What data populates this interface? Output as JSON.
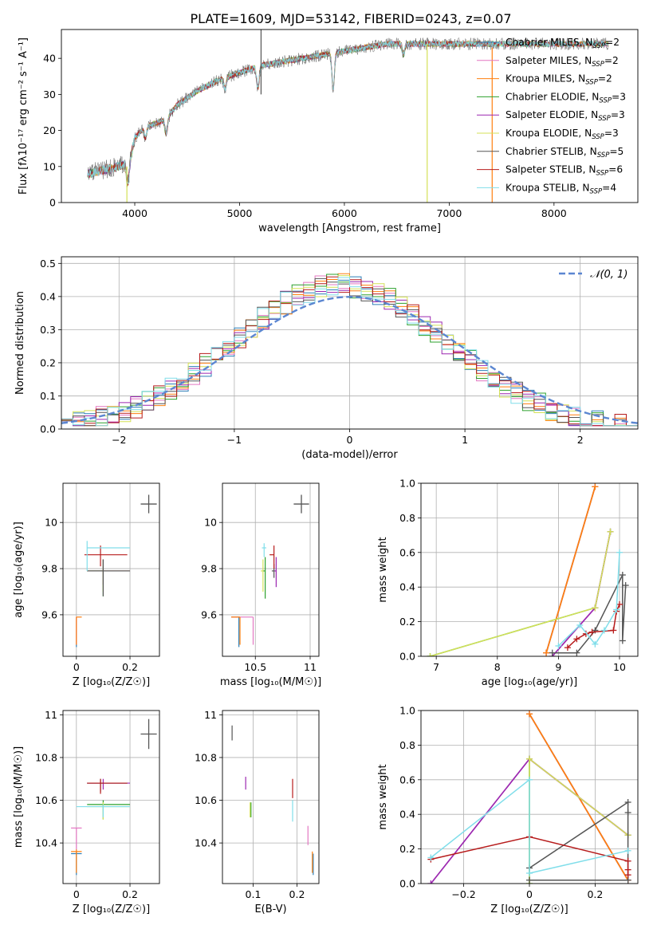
{
  "figure": {
    "title": "PLATE=1609, MJD=53142, FIBERID=0243, z=0.07",
    "colors": {
      "Chabrier MILES": "#2c7fb8",
      "Salpeter MILES": "#e377c2",
      "Kroupa MILES": "#ff7f0e",
      "Chabrier ELODIE": "#2ca02c",
      "Salpeter ELODIE": "#9c27b0",
      "Kroupa ELODIE": "#d4e157",
      "Chabrier STELIB": "#555555",
      "Salpeter STELIB": "#b71c1c",
      "Kroupa STELIB": "#80deea"
    }
  },
  "chart_data": [
    {
      "id": "spectrum",
      "type": "line",
      "xlabel": "wavelength [Angstrom, rest frame]",
      "ylabel": "Flux [fλ10⁻¹⁷ erg cm⁻² s⁻¹ A⁻¹]",
      "xlim": [
        3300,
        8800
      ],
      "ylim": [
        0,
        48
      ],
      "xticks": [
        4000,
        5000,
        6000,
        7000,
        8000
      ],
      "yticks": [
        0,
        10,
        20,
        30,
        40
      ],
      "grid": false,
      "legend_position": "right",
      "legend": [
        {
          "label": "Chabrier MILES, N",
          "sub": "SSP",
          "tail": "=2",
          "series": "Chabrier MILES"
        },
        {
          "label": "Salpeter MILES, N",
          "sub": "SSP",
          "tail": "=2",
          "series": "Salpeter MILES"
        },
        {
          "label": "Kroupa MILES, N",
          "sub": "SSP",
          "tail": "=2",
          "series": "Kroupa MILES"
        },
        {
          "label": "Chabrier ELODIE, N",
          "sub": "SSP",
          "tail": "=3",
          "series": "Chabrier ELODIE"
        },
        {
          "label": "Salpeter ELODIE, N",
          "sub": "SSP",
          "tail": "=3",
          "series": "Salpeter ELODIE"
        },
        {
          "label": "Kroupa ELODIE, N",
          "sub": "SSP",
          "tail": "=3",
          "series": "Kroupa ELODIE"
        },
        {
          "label": "Chabrier STELIB, N",
          "sub": "SSP",
          "tail": "=5",
          "series": "Chabrier STELIB"
        },
        {
          "label": "Salpeter STELIB, N",
          "sub": "SSP",
          "tail": "=6",
          "series": "Salpeter STELIB"
        },
        {
          "label": "Kroupa STELIB, N",
          "sub": "SSP",
          "tail": "=4",
          "series": "Kroupa STELIB"
        }
      ],
      "continuum": {
        "x": [
          3550,
          3700,
          3850,
          3950,
          4000,
          4100,
          4300,
          4400,
          4600,
          4800,
          5000,
          5200,
          5400,
          5600,
          5800,
          6000,
          6200,
          6400,
          6600,
          6800,
          7000,
          7200,
          7400,
          7600,
          7800,
          8000,
          8200,
          8400,
          8500
        ],
        "y": [
          8,
          9,
          10,
          11,
          18,
          21,
          23,
          27,
          31,
          34,
          36,
          38,
          39,
          40,
          41,
          42,
          43,
          44,
          44,
          44,
          44,
          44,
          44,
          44,
          44,
          44,
          44,
          44,
          44
        ]
      },
      "dips": [
        {
          "x": 3933,
          "depth": 5
        },
        {
          "x": 4102,
          "depth": 3
        },
        {
          "x": 4300,
          "depth": 4
        },
        {
          "x": 4861,
          "depth": 3
        },
        {
          "x": 5175,
          "depth": 6
        },
        {
          "x": 5893,
          "depth": 10
        },
        {
          "x": 6563,
          "depth": 3
        }
      ],
      "artifacts": [
        {
          "x": 5205,
          "y0": 30,
          "y1": 49,
          "series": "Chabrier STELIB"
        },
        {
          "x": 6790,
          "y0": 0,
          "y1": 44,
          "series": "Kroupa ELODIE"
        },
        {
          "x": 7410,
          "y0": 0,
          "y1": 43,
          "series": "Kroupa MILES"
        },
        {
          "x": 3925,
          "y0": 0,
          "y1": 10,
          "series": "Kroupa ELODIE"
        }
      ]
    },
    {
      "id": "residual-hist",
      "type": "bar",
      "xlabel": "(data-model)/error",
      "ylabel": "Normed distribution",
      "xlim": [
        -2.5,
        2.5
      ],
      "ylim": [
        0,
        0.52
      ],
      "xticks": [
        -2,
        -1,
        0,
        1,
        2
      ],
      "yticks": [
        0.0,
        0.1,
        0.2,
        0.3,
        0.4,
        0.5
      ],
      "grid": true,
      "legend_position": "top-right",
      "normal_curve": {
        "label": "𝒩(0, 1)",
        "mean": 0,
        "sigma": 1,
        "color": "#5b86d1"
      },
      "bin_width": 0.1,
      "bin_start": -2.5
    },
    {
      "id": "age-vs-Z",
      "type": "scatter",
      "xlabel": "Z [log₁₀(Z/Z☉)]",
      "ylabel": "age [log₁₀(age/yr)]",
      "xlim": [
        -0.05,
        0.31
      ],
      "ylim": [
        9.42,
        10.17
      ],
      "xticks": [
        0.0,
        0.2
      ],
      "yticks": [
        9.6,
        9.8,
        10.0
      ],
      "grid": true,
      "typical_error": {
        "x": 0.27,
        "y": 10.08,
        "dx": 0.03,
        "dy": 0.04
      },
      "points": [
        {
          "series": "Chabrier MILES",
          "x": 0.0,
          "y": 9.59,
          "xerr": [
            0.0,
            0.0
          ],
          "yerr": [
            0.13,
            0.0
          ]
        },
        {
          "series": "Salpeter MILES",
          "x": 0.0,
          "y": 9.59,
          "xerr": [
            0.0,
            0.0
          ],
          "yerr": [
            0.12,
            0.0
          ]
        },
        {
          "series": "Kroupa MILES",
          "x": 0.0,
          "y": 9.59,
          "xerr": [
            0.0,
            0.02
          ],
          "yerr": [
            0.12,
            0.0
          ]
        },
        {
          "series": "Chabrier ELODIE",
          "x": 0.1,
          "y": 9.79,
          "xerr": [
            0.06,
            0.0
          ],
          "yerr": [
            0.11,
            0.05
          ]
        },
        {
          "series": "Salpeter ELODIE",
          "x": 0.1,
          "y": 9.79,
          "xerr": [
            0.06,
            0.1
          ],
          "yerr": [
            0.06,
            0.05
          ]
        },
        {
          "series": "Kroupa ELODIE",
          "x": 0.1,
          "y": 9.79,
          "xerr": [
            0.06,
            0.1
          ],
          "yerr": [
            0.09,
            0.05
          ]
        },
        {
          "series": "Chabrier STELIB",
          "x": 0.1,
          "y": 9.79,
          "xerr": [
            0.06,
            0.1
          ],
          "yerr": [
            0.11,
            0.05
          ]
        },
        {
          "series": "Salpeter STELIB",
          "x": 0.09,
          "y": 9.86,
          "xerr": [
            0.06,
            0.1
          ],
          "yerr": [
            0.05,
            0.04
          ]
        },
        {
          "series": "Kroupa STELIB",
          "x": 0.04,
          "y": 9.89,
          "xerr": [
            0.0,
            0.16
          ],
          "yerr": [
            0.1,
            0.03
          ]
        }
      ]
    },
    {
      "id": "age-vs-mass",
      "type": "scatter",
      "xlabel": "mass [log₁₀(M/M☉)]",
      "ylabel": "",
      "xlim": [
        10.2,
        11.08
      ],
      "ylim": [
        9.42,
        10.17
      ],
      "xticks": [
        10.5,
        11.0
      ],
      "yticks": [
        9.6,
        9.8,
        10.0
      ],
      "grid": true,
      "typical_error": {
        "x": 10.92,
        "y": 10.08,
        "dx": 0.07,
        "dy": 0.04
      },
      "points": [
        {
          "series": "Chabrier MILES",
          "x": 10.35,
          "y": 9.59,
          "xerr": [
            0.07,
            0.0
          ],
          "yerr": [
            0.13,
            0.0
          ]
        },
        {
          "series": "Salpeter MILES",
          "x": 10.48,
          "y": 9.59,
          "xerr": [
            0.2,
            0.0
          ],
          "yerr": [
            0.12,
            0.0
          ]
        },
        {
          "series": "Kroupa MILES",
          "x": 10.36,
          "y": 9.59,
          "xerr": [
            0.08,
            0.0
          ],
          "yerr": [
            0.12,
            0.0
          ]
        },
        {
          "series": "Chabrier ELODIE",
          "x": 10.59,
          "y": 9.79,
          "xerr": [
            0.02,
            0.0
          ],
          "yerr": [
            0.12,
            0.06
          ]
        },
        {
          "series": "Salpeter ELODIE",
          "x": 10.69,
          "y": 9.79,
          "xerr": [
            0.02,
            0.0
          ],
          "yerr": [
            0.07,
            0.06
          ]
        },
        {
          "series": "Kroupa ELODIE",
          "x": 10.57,
          "y": 9.79,
          "xerr": [
            0.02,
            0.0
          ],
          "yerr": [
            0.09,
            0.05
          ]
        },
        {
          "series": "Chabrier STELIB",
          "x": 10.67,
          "y": 9.79,
          "xerr": [
            0.02,
            0.0
          ],
          "yerr": [
            0.03,
            0.03
          ]
        },
        {
          "series": "Salpeter STELIB",
          "x": 10.67,
          "y": 9.86,
          "xerr": [
            0.04,
            0.0
          ],
          "yerr": [
            0.06,
            0.04
          ]
        },
        {
          "series": "Kroupa STELIB",
          "x": 10.58,
          "y": 9.89,
          "xerr": [
            0.02,
            0.02
          ],
          "yerr": [
            0.04,
            0.02
          ]
        }
      ]
    },
    {
      "id": "weight-vs-age",
      "type": "line",
      "xlabel": "age  [log₁₀(age/yr)]",
      "ylabel": "mass weight",
      "xlim": [
        6.75,
        10.3
      ],
      "ylim": [
        0.0,
        1.0
      ],
      "xticks": [
        7,
        8,
        9,
        10
      ],
      "yticks": [
        0.0,
        0.2,
        0.4,
        0.6,
        0.8,
        1.0
      ],
      "grid": true,
      "series": [
        {
          "name": "Chabrier MILES",
          "x": [
            8.8,
            9.6
          ],
          "y": [
            0.02,
            0.98
          ]
        },
        {
          "name": "Salpeter MILES",
          "x": [
            8.8,
            9.6
          ],
          "y": [
            0.02,
            0.98
          ]
        },
        {
          "name": "Kroupa MILES",
          "x": [
            8.8,
            9.6
          ],
          "y": [
            0.02,
            0.98
          ]
        },
        {
          "name": "Chabrier ELODIE",
          "x": [
            6.9,
            9.6,
            9.85
          ],
          "y": [
            0.0,
            0.28,
            0.72
          ]
        },
        {
          "name": "Salpeter ELODIE",
          "x": [
            8.9,
            9.6,
            9.85
          ],
          "y": [
            0.0,
            0.28,
            0.72
          ]
        },
        {
          "name": "Kroupa ELODIE",
          "x": [
            6.9,
            9.6,
            9.85
          ],
          "y": [
            0.0,
            0.28,
            0.72
          ]
        },
        {
          "name": "Chabrier STELIB",
          "x": [
            8.9,
            9.3,
            9.6,
            10.05,
            10.05,
            10.1
          ],
          "y": [
            0.02,
            0.02,
            0.15,
            0.47,
            0.09,
            0.41
          ]
        },
        {
          "name": "Salpeter STELIB",
          "x": [
            9.15,
            9.3,
            9.45,
            9.55,
            9.9,
            9.95,
            10.0
          ],
          "y": [
            0.05,
            0.1,
            0.13,
            0.14,
            0.15,
            0.26,
            0.3
          ]
        },
        {
          "name": "Kroupa STELIB",
          "x": [
            9.0,
            9.35,
            9.6,
            9.75,
            9.95,
            10.0
          ],
          "y": [
            0.06,
            0.18,
            0.07,
            0.15,
            0.27,
            0.6
          ]
        }
      ]
    },
    {
      "id": "mass-vs-Z",
      "type": "scatter",
      "xlabel": "Z [log₁₀(Z/Z☉)]",
      "ylabel": "mass [log₁₀(M/M☉)]",
      "xlim": [
        -0.05,
        0.31
      ],
      "ylim": [
        10.21,
        11.02
      ],
      "xticks": [
        0.0,
        0.2
      ],
      "yticks": [
        10.4,
        10.6,
        10.8,
        11.0
      ],
      "grid": true,
      "typical_error": {
        "x": 0.27,
        "y": 10.91,
        "dx": 0.03,
        "dy": 0.07
      },
      "points": [
        {
          "series": "Chabrier MILES",
          "x": 0.0,
          "y": 10.35,
          "xerr": [
            0.02,
            0.02
          ],
          "yerr": [
            0.1,
            0.01
          ]
        },
        {
          "series": "Salpeter MILES",
          "x": 0.0,
          "y": 10.47,
          "xerr": [
            0.02,
            0.02
          ],
          "yerr": [
            0.1,
            0.0
          ]
        },
        {
          "series": "Kroupa MILES",
          "x": 0.0,
          "y": 10.36,
          "xerr": [
            0.02,
            0.02
          ],
          "yerr": [
            0.1,
            0.01
          ]
        },
        {
          "series": "Chabrier ELODIE",
          "x": 0.1,
          "y": 10.58,
          "xerr": [
            0.06,
            0.1
          ],
          "yerr": [
            0.07,
            0.02
          ]
        },
        {
          "series": "Salpeter ELODIE",
          "x": 0.1,
          "y": 10.68,
          "xerr": [
            0.06,
            0.1
          ],
          "yerr": [
            0.03,
            0.02
          ]
        },
        {
          "series": "Kroupa ELODIE",
          "x": 0.1,
          "y": 10.57,
          "xerr": [
            0.06,
            0.1
          ],
          "yerr": [
            0.06,
            0.02
          ]
        },
        {
          "series": "Chabrier STELIB",
          "x": 0.09,
          "y": 10.68,
          "xerr": [
            0.05,
            0.1
          ],
          "yerr": [
            0.04,
            0.02
          ]
        },
        {
          "series": "Salpeter STELIB",
          "x": 0.09,
          "y": 10.68,
          "xerr": [
            0.05,
            0.1
          ],
          "yerr": [
            0.05,
            0.02
          ]
        },
        {
          "series": "Kroupa STELIB",
          "x": 0.1,
          "y": 10.57,
          "xerr": [
            0.1,
            0.1
          ],
          "yerr": [
            0.05,
            0.01
          ]
        }
      ]
    },
    {
      "id": "mass-vs-ebv",
      "type": "scatter",
      "xlabel": "E(B-V)",
      "ylabel": "",
      "xlim": [
        0.03,
        0.25
      ],
      "ylim": [
        10.21,
        11.02
      ],
      "xticks": [
        0.1,
        0.2
      ],
      "yticks": [
        10.4,
        10.6,
        10.8,
        11.0
      ],
      "grid": true,
      "points": [
        {
          "series": "Chabrier MILES",
          "x": 0.237,
          "y": 10.3,
          "yerr": [
            0.05,
            0.05
          ]
        },
        {
          "series": "Salpeter MILES",
          "x": 0.225,
          "y": 10.44,
          "yerr": [
            0.05,
            0.04
          ]
        },
        {
          "series": "Kroupa MILES",
          "x": 0.235,
          "y": 10.31,
          "yerr": [
            0.05,
            0.05
          ]
        },
        {
          "series": "Chabrier ELODIE",
          "x": 0.095,
          "y": 10.54,
          "yerr": [
            0.02,
            0.05
          ]
        },
        {
          "series": "Salpeter ELODIE",
          "x": 0.083,
          "y": 10.68,
          "yerr": [
            0.03,
            0.03
          ]
        },
        {
          "series": "Kroupa ELODIE",
          "x": 0.093,
          "y": 10.55,
          "yerr": [
            0.03,
            0.04
          ]
        },
        {
          "series": "Chabrier STELIB",
          "x": 0.052,
          "y": 10.95,
          "yerr": [
            0.07,
            0.0
          ]
        },
        {
          "series": "Salpeter STELIB",
          "x": 0.19,
          "y": 10.65,
          "yerr": [
            0.04,
            0.05
          ]
        },
        {
          "series": "Kroupa STELIB",
          "x": 0.19,
          "y": 10.55,
          "yerr": [
            0.05,
            0.05
          ]
        }
      ]
    },
    {
      "id": "weight-vs-Z",
      "type": "line",
      "xlabel": "Z [log₁₀(Z/Z☉)]",
      "ylabel": "mass weight",
      "xlim": [
        -0.33,
        0.33
      ],
      "ylim": [
        0.0,
        1.0
      ],
      "xticks": [
        -0.2,
        0.0,
        0.2
      ],
      "yticks": [
        0.0,
        0.2,
        0.4,
        0.6,
        0.8,
        1.0
      ],
      "grid": true,
      "series": [
        {
          "name": "Chabrier MILES",
          "x": [
            0.0,
            0.3
          ],
          "y": [
            0.98,
            0.02
          ]
        },
        {
          "name": "Salpeter MILES",
          "x": [
            0.0,
            0.3
          ],
          "y": [
            0.98,
            0.02
          ]
        },
        {
          "name": "Kroupa MILES",
          "x": [
            0.0,
            0.3
          ],
          "y": [
            0.98,
            0.02
          ]
        },
        {
          "name": "Chabrier ELODIE",
          "x": [
            0.0,
            0.0,
            0.3
          ],
          "y": [
            0.0,
            0.72,
            0.28
          ]
        },
        {
          "name": "Salpeter ELODIE",
          "x": [
            -0.3,
            0.0,
            0.3
          ],
          "y": [
            0.0,
            0.72,
            0.28
          ]
        },
        {
          "name": "Kroupa ELODIE",
          "x": [
            0.0,
            0.0,
            0.3
          ],
          "y": [
            0.0,
            0.72,
            0.28
          ]
        },
        {
          "name": "Chabrier STELIB",
          "x": [
            0.0,
            0.3,
            0.3,
            0.3,
            0.0
          ],
          "y": [
            0.09,
            0.47,
            0.41,
            0.02,
            0.02
          ]
        },
        {
          "name": "Salpeter STELIB",
          "x": [
            -0.3,
            0.0,
            0.3,
            0.3,
            0.3
          ],
          "y": [
            0.14,
            0.27,
            0.13,
            0.08,
            0.05
          ]
        },
        {
          "name": "Kroupa STELIB",
          "x": [
            -0.3,
            0.0,
            0.0,
            0.3
          ],
          "y": [
            0.15,
            0.6,
            0.06,
            0.19
          ]
        }
      ]
    }
  ]
}
